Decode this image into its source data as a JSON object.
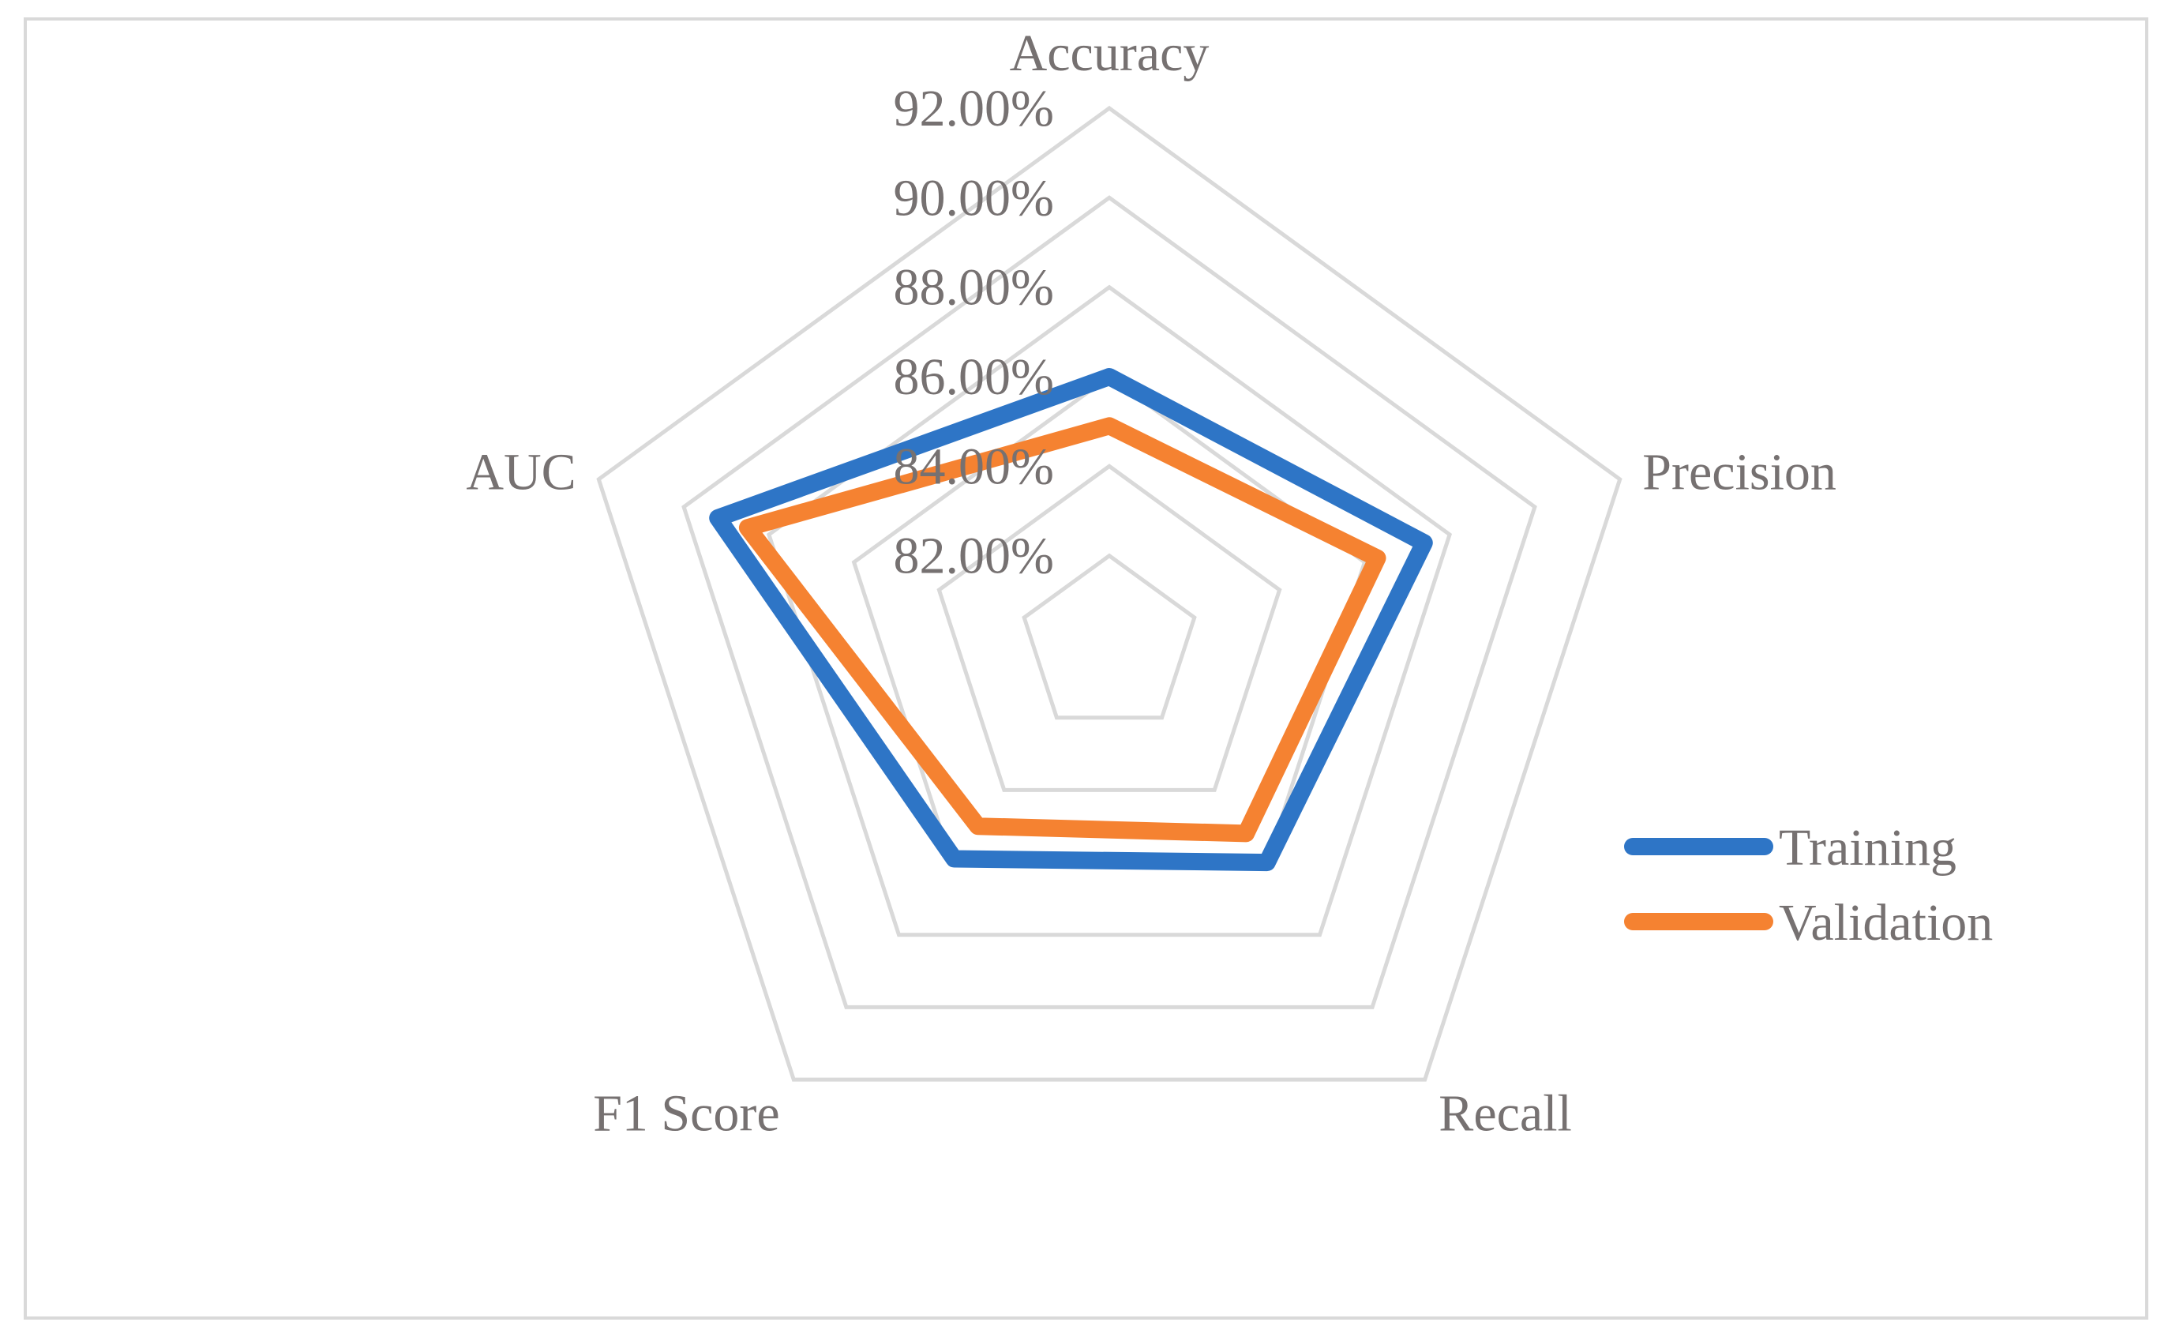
{
  "chart_data": {
    "type": "radar",
    "categories": [
      "Accuracy",
      "Precision",
      "Recall",
      "F1 Score",
      "AUC"
    ],
    "series": [
      {
        "name": "Training",
        "values": [
          86.0,
          87.4,
          86.0,
          85.9,
          89.2
        ],
        "color": "#2e75c6"
      },
      {
        "name": "Validation",
        "values": [
          84.9,
          86.3,
          85.2,
          85.0,
          88.5
        ],
        "color": "#f58231"
      }
    ],
    "r_ticks": [
      "82.00%",
      "84.00%",
      "86.00%",
      "88.00%",
      "90.00%",
      "92.00%"
    ],
    "r_min": 80,
    "r_max": 92,
    "legend_position": "right",
    "grid_color": "#d9d9d9",
    "label_color": "#767171"
  }
}
